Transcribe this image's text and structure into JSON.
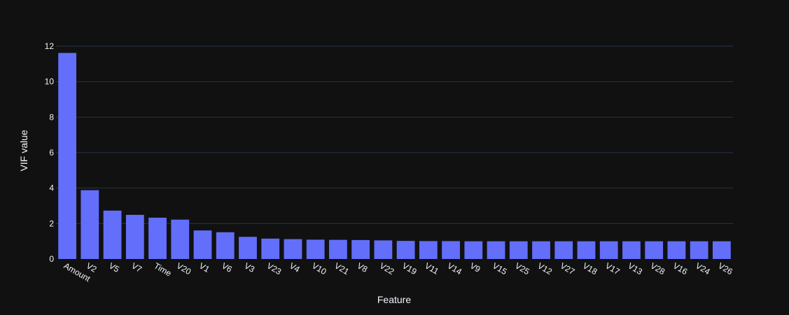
{
  "chart_data": {
    "type": "bar",
    "categories": [
      "Amount",
      "V2",
      "V5",
      "V7",
      "Time",
      "V20",
      "V1",
      "V6",
      "V3",
      "V23",
      "V4",
      "V10",
      "V21",
      "V8",
      "V22",
      "V19",
      "V11",
      "V14",
      "V9",
      "V15",
      "V25",
      "V12",
      "V27",
      "V18",
      "V17",
      "V13",
      "V28",
      "V16",
      "V24",
      "V26"
    ],
    "values": [
      11.62,
      3.88,
      2.73,
      2.49,
      2.33,
      2.22,
      1.61,
      1.51,
      1.25,
      1.15,
      1.12,
      1.09,
      1.08,
      1.07,
      1.05,
      1.02,
      1.01,
      1.01,
      1.0,
      1.0,
      1.0,
      1.0,
      1.0,
      1.0,
      1.0,
      1.0,
      1.0,
      1.0,
      1.0,
      1.0
    ],
    "xlabel": "Feature",
    "ylabel": "VIF value",
    "ylim": [
      0,
      12
    ],
    "yticks": [
      0,
      2,
      4,
      6,
      8,
      10,
      12
    ],
    "grid": true,
    "bar_color": "#636efa",
    "background": "#111111"
  }
}
